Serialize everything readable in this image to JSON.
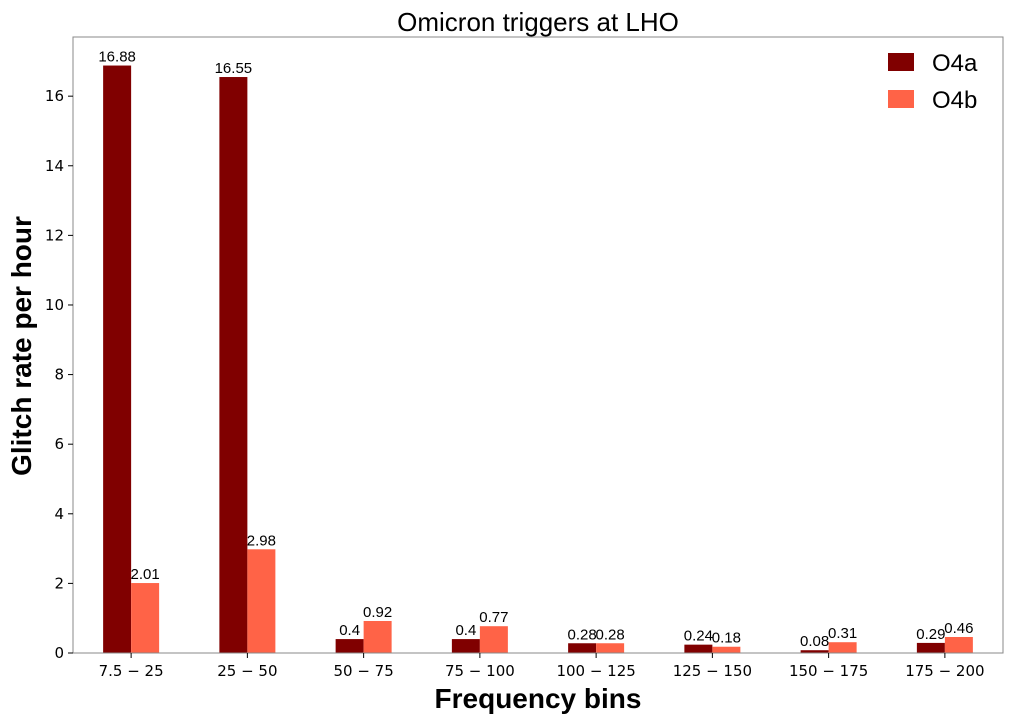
{
  "chart_data": {
    "type": "bar",
    "title": "Omicron triggers at LHO",
    "xlabel": "Frequency bins",
    "ylabel": "Glitch rate per hour",
    "categories": [
      "7.5 − 25",
      "25 − 50",
      "50 − 75",
      "75 − 100",
      "100 − 125",
      "125 − 150",
      "150 − 175",
      "175 − 200"
    ],
    "series": [
      {
        "name": "O4a",
        "color": "#800000",
        "values": [
          16.88,
          16.55,
          0.4,
          0.4,
          0.28,
          0.24,
          0.08,
          0.29
        ]
      },
      {
        "name": "O4b",
        "color": "#ff6347",
        "values": [
          2.01,
          2.98,
          0.92,
          0.77,
          0.28,
          0.18,
          0.31,
          0.46
        ]
      }
    ],
    "ylim": [
      0,
      17.7
    ],
    "yticks": [
      0,
      2,
      4,
      6,
      8,
      10,
      12,
      14,
      16
    ],
    "grid": false,
    "legend_position": "top-right",
    "show_value_labels": true
  }
}
